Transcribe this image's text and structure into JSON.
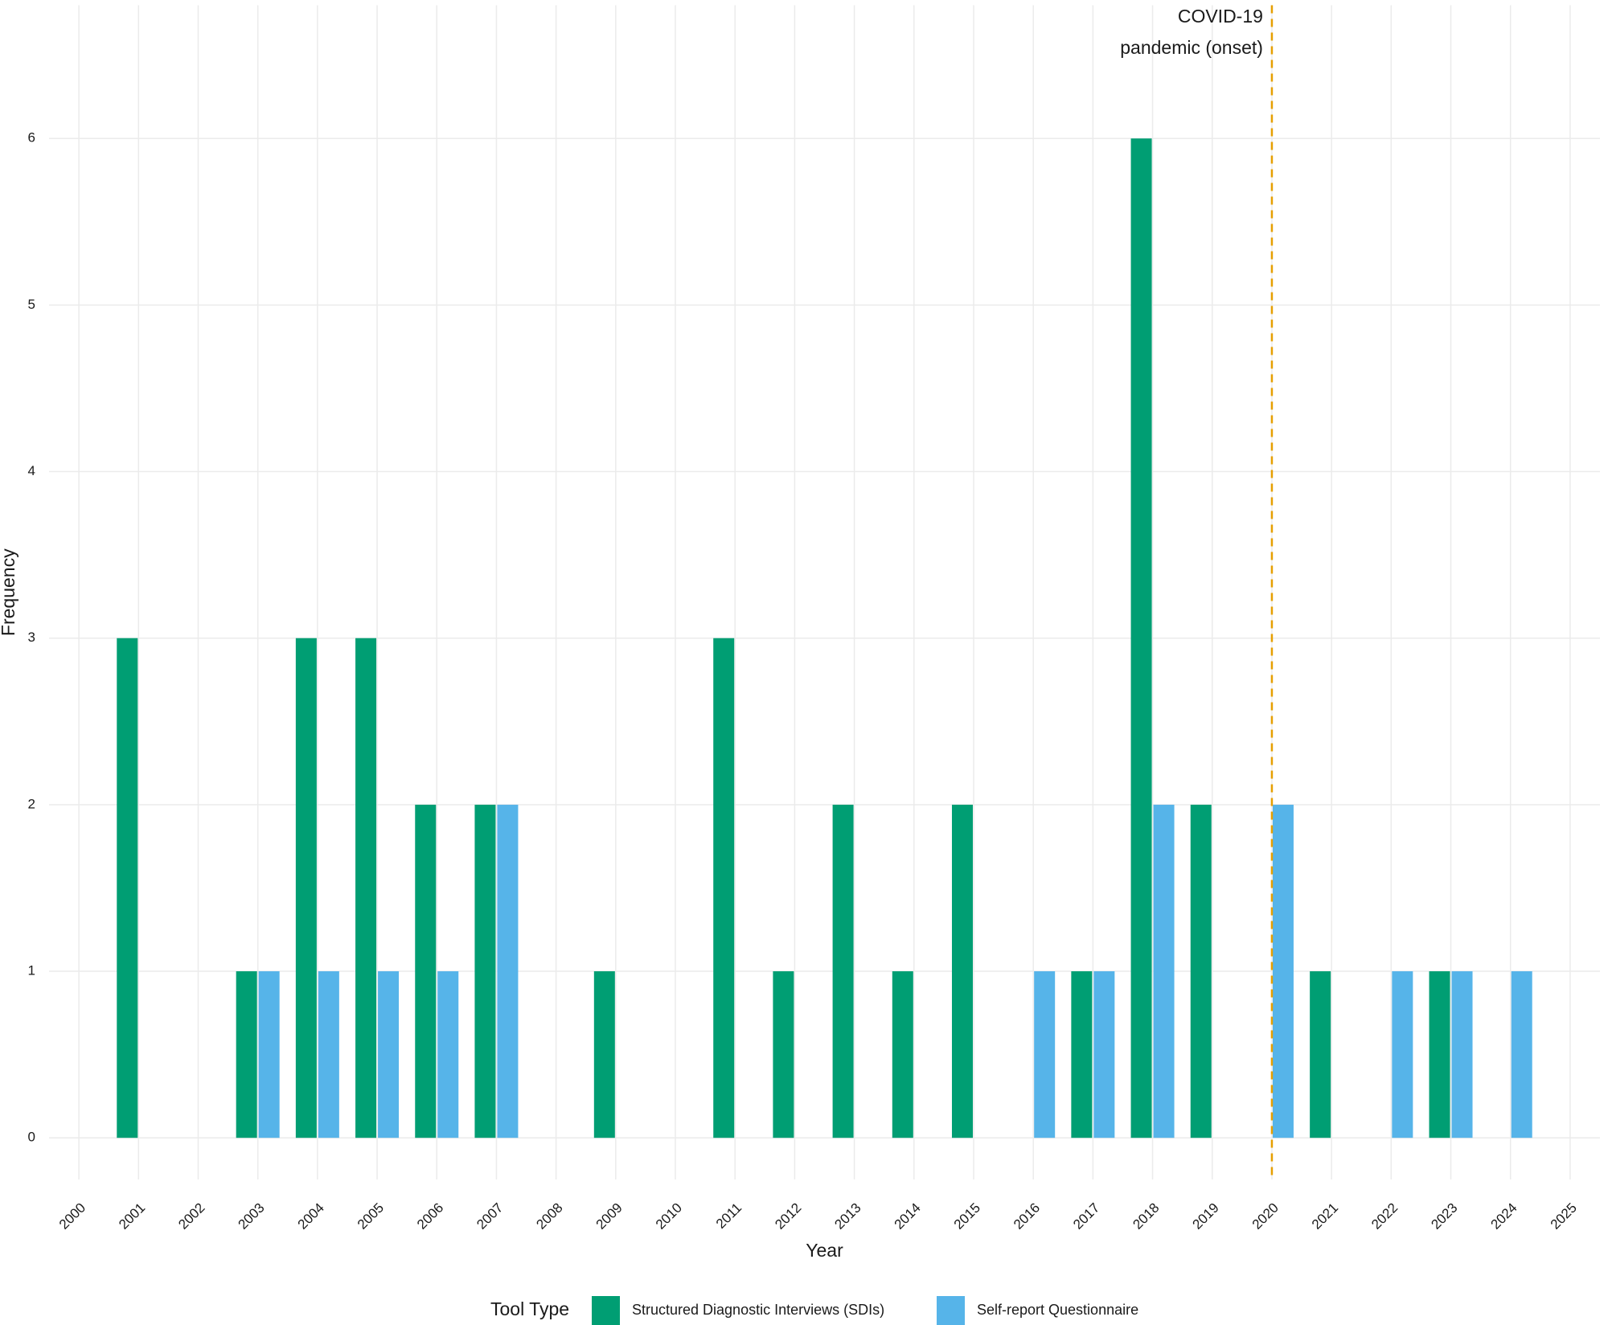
{
  "chart_data": {
    "type": "grouped_bar",
    "x_label": "Year",
    "y_label": "Frequency",
    "categories": [
      "2000",
      "2001",
      "2002",
      "2003",
      "2004",
      "2005",
      "2006",
      "2007",
      "2008",
      "2009",
      "2010",
      "2011",
      "2012",
      "2013",
      "2014",
      "2015",
      "2016",
      "2017",
      "2018",
      "2019",
      "2020",
      "2021",
      "2022",
      "2023",
      "2024",
      "2025"
    ],
    "series": [
      {
        "name": "Structured Diagnostic Interviews (SDIs)",
        "color": "#009E73",
        "values": [
          null,
          3,
          null,
          1,
          3,
          3,
          2,
          2,
          null,
          1,
          null,
          3,
          1,
          2,
          1,
          2,
          null,
          1,
          6,
          2,
          null,
          1,
          null,
          1,
          null,
          null
        ]
      },
      {
        "name": "Self-report Questionnaire",
        "color": "#56B4E9",
        "values": [
          null,
          null,
          null,
          1,
          1,
          1,
          1,
          2,
          null,
          null,
          null,
          null,
          null,
          null,
          null,
          null,
          1,
          1,
          2,
          null,
          2,
          null,
          1,
          1,
          1,
          null
        ]
      }
    ],
    "legend_title": "Tool Type",
    "legend_position": "bottom",
    "ylim": [
      -0.25,
      6.8
    ],
    "yticks": [
      0,
      1,
      2,
      3,
      4,
      5,
      6
    ],
    "grid": true,
    "vline": {
      "x": "2020",
      "color": "#E69F00",
      "label": [
        "COVID-19",
        "pandemic (onset)"
      ]
    }
  }
}
